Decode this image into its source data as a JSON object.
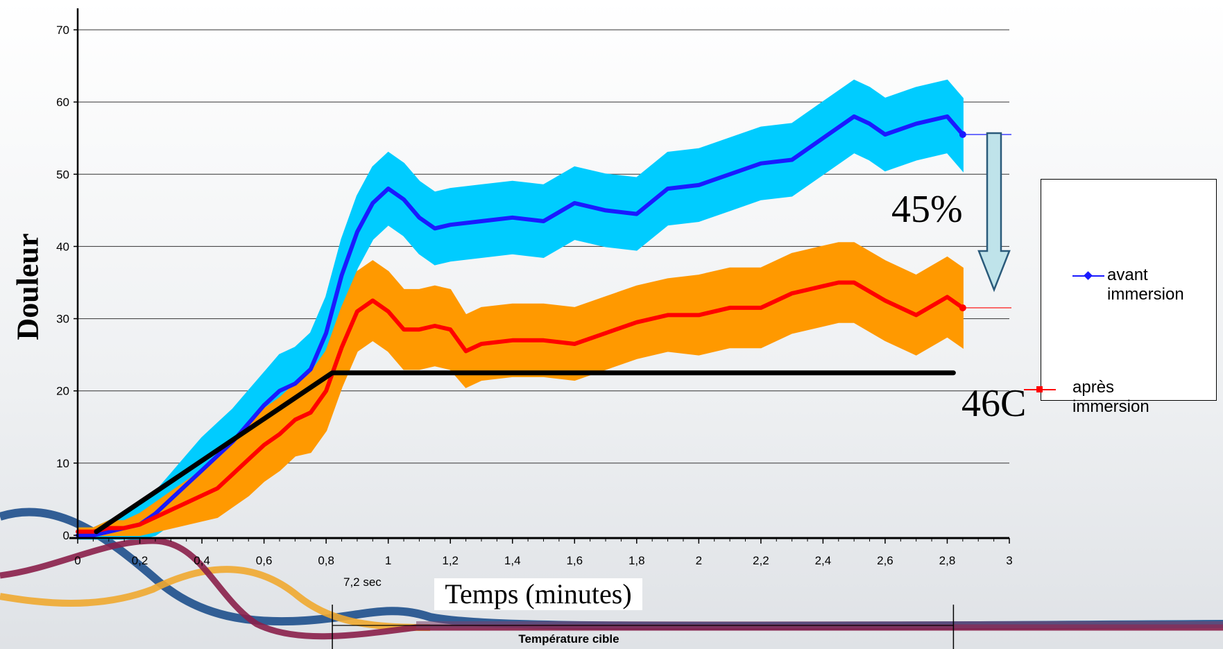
{
  "chart_data": {
    "type": "line",
    "xlabel": "Temps (minutes)",
    "ylabel": "Douleur",
    "xlim": [
      0,
      3
    ],
    "ylim": [
      0,
      70
    ],
    "x_ticks": [
      "0",
      "0,2",
      "0,4",
      "0,6",
      "0,8",
      "1",
      "1,2",
      "1,4",
      "1,6",
      "1,8",
      "2",
      "2,2",
      "2,4",
      "2,6",
      "2,8",
      "3"
    ],
    "y_ticks": [
      "0",
      "10",
      "20",
      "30",
      "40",
      "50",
      "60",
      "70"
    ],
    "grid": "horizontal",
    "legend_position": "right",
    "series": [
      {
        "name": "avant immersion",
        "color": "#1a1aff",
        "band_color": "#00ccff",
        "x": [
          0,
          0.05,
          0.1,
          0.15,
          0.2,
          0.25,
          0.3,
          0.35,
          0.4,
          0.45,
          0.5,
          0.55,
          0.6,
          0.65,
          0.7,
          0.75,
          0.8,
          0.85,
          0.9,
          0.95,
          1.0,
          1.05,
          1.1,
          1.15,
          1.2,
          1.3,
          1.4,
          1.5,
          1.6,
          1.7,
          1.8,
          1.9,
          2.0,
          2.1,
          2.2,
          2.3,
          2.4,
          2.5,
          2.55,
          2.6,
          2.7,
          2.8,
          2.85
        ],
        "y": [
          0,
          0,
          0.5,
          1,
          1.5,
          3,
          5,
          7,
          9,
          11,
          13,
          15.5,
          18,
          20,
          21,
          23,
          28,
          36,
          42,
          46,
          48,
          46.5,
          44,
          42.5,
          43,
          43.5,
          44,
          43.5,
          46,
          45,
          44.5,
          48,
          48.5,
          50,
          51.5,
          52,
          55,
          58,
          57,
          55.5,
          57,
          58,
          55.5
        ],
        "band": [
          1,
          1,
          1.5,
          2,
          2.5,
          3,
          3.5,
          4,
          4.5,
          4.5,
          4.5,
          4.5,
          4.5,
          5,
          5,
          5,
          5,
          5,
          5,
          5,
          5,
          5,
          5,
          5,
          5,
          5,
          5,
          5,
          5,
          5,
          5,
          5,
          5,
          5,
          5,
          5,
          5,
          5,
          5,
          5,
          5,
          5,
          5
        ]
      },
      {
        "name": "après immersion",
        "color": "#ff0000",
        "band_color": "#ff9900",
        "x": [
          0,
          0.05,
          0.1,
          0.15,
          0.2,
          0.25,
          0.3,
          0.35,
          0.4,
          0.45,
          0.5,
          0.55,
          0.6,
          0.65,
          0.7,
          0.75,
          0.8,
          0.85,
          0.9,
          0.95,
          1.0,
          1.05,
          1.1,
          1.15,
          1.2,
          1.25,
          1.3,
          1.4,
          1.5,
          1.6,
          1.7,
          1.8,
          1.9,
          2.0,
          2.1,
          2.2,
          2.3,
          2.4,
          2.45,
          2.5,
          2.6,
          2.7,
          2.8,
          2.85
        ],
        "y": [
          0.5,
          0.5,
          1,
          1,
          1.5,
          2.5,
          3.5,
          4.5,
          5.5,
          6.5,
          8.5,
          10.5,
          12.5,
          14,
          16,
          17,
          20,
          26,
          31,
          32.5,
          31,
          28.5,
          28.5,
          29,
          28.5,
          25.5,
          26.5,
          27,
          27,
          26.5,
          28,
          29.5,
          30.5,
          30.5,
          31.5,
          31.5,
          33.5,
          34.5,
          35,
          35,
          32.5,
          30.5,
          33,
          31.5
        ],
        "band": [
          0.5,
          0.5,
          1,
          1,
          1.5,
          2,
          2.5,
          3,
          3.5,
          4,
          4.5,
          5,
          5,
          5,
          5,
          5.5,
          5.5,
          5.5,
          5.5,
          5.5,
          5.5,
          5.5,
          5.5,
          5.5,
          5.5,
          5,
          5,
          5,
          5,
          5,
          5,
          5,
          5,
          5.5,
          5.5,
          5.5,
          5.5,
          5.5,
          5.5,
          5.5,
          5.5,
          5.5,
          5.5,
          5.5
        ]
      },
      {
        "name": "",
        "color": "#000000",
        "x": [
          0.06,
          0.82,
          2.82
        ],
        "y": [
          0.5,
          22.5,
          22.5
        ]
      }
    ]
  },
  "annotations": {
    "target_temp": "46C",
    "reduction": "45%",
    "ramp_time": "7,2 sec",
    "target_label": "Température cible"
  },
  "legend": {
    "items": [
      {
        "label": "avant\nimmersion",
        "color": "#1a1aff"
      },
      {
        "label": "après\nimmersion",
        "color": "#ff0000"
      }
    ]
  }
}
